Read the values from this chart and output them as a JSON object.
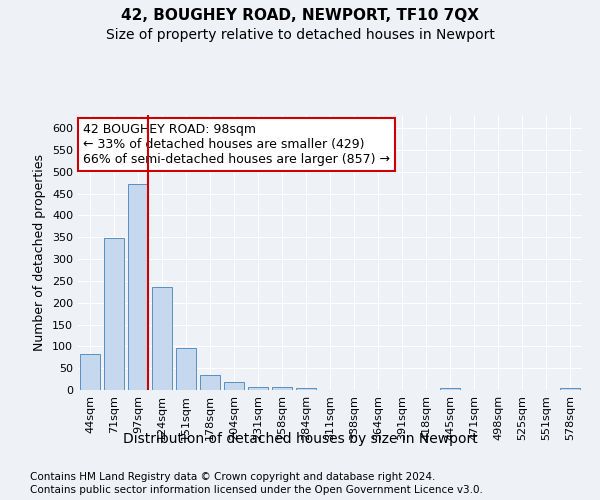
{
  "title1": "42, BOUGHEY ROAD, NEWPORT, TF10 7QX",
  "title2": "Size of property relative to detached houses in Newport",
  "xlabel": "Distribution of detached houses by size in Newport",
  "ylabel": "Number of detached properties",
  "categories": [
    "44sqm",
    "71sqm",
    "97sqm",
    "124sqm",
    "151sqm",
    "178sqm",
    "204sqm",
    "231sqm",
    "258sqm",
    "284sqm",
    "311sqm",
    "338sqm",
    "364sqm",
    "391sqm",
    "418sqm",
    "445sqm",
    "471sqm",
    "498sqm",
    "525sqm",
    "551sqm",
    "578sqm"
  ],
  "values": [
    82,
    348,
    473,
    235,
    97,
    35,
    18,
    7,
    8,
    5,
    1,
    0,
    0,
    0,
    0,
    5,
    0,
    0,
    0,
    0,
    5
  ],
  "bar_color": "#c5d8ed",
  "bar_edge_color": "#5a8fbf",
  "highlight_line_color": "#cc0000",
  "highlight_index": 2,
  "annotation_text": "42 BOUGHEY ROAD: 98sqm\n← 33% of detached houses are smaller (429)\n66% of semi-detached houses are larger (857) →",
  "annotation_box_facecolor": "#ffffff",
  "annotation_box_edgecolor": "#cc0000",
  "ylim": [
    0,
    630
  ],
  "yticks": [
    0,
    50,
    100,
    150,
    200,
    250,
    300,
    350,
    400,
    450,
    500,
    550,
    600
  ],
  "background_color": "#eef2f7",
  "grid_color": "#ffffff",
  "title1_fontsize": 11,
  "title2_fontsize": 10,
  "ylabel_fontsize": 9,
  "tick_fontsize": 8,
  "xlabel_fontsize": 10,
  "annotation_fontsize": 9,
  "footer_fontsize": 7.5,
  "footer1": "Contains HM Land Registry data © Crown copyright and database right 2024.",
  "footer2": "Contains public sector information licensed under the Open Government Licence v3.0."
}
